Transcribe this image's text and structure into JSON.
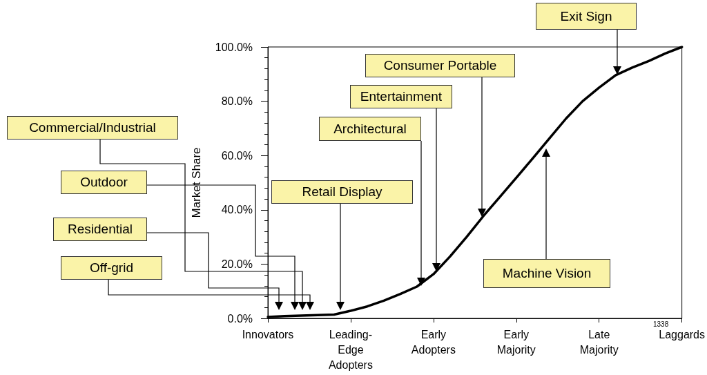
{
  "chart_data": {
    "type": "line",
    "ylabel": "Market Share",
    "categories": [
      "Innovators",
      null,
      null,
      null,
      null,
      "Leading-\nEdge\nAdopters",
      null,
      null,
      null,
      null,
      "Early\nAdopters",
      null,
      null,
      null,
      null,
      "Early\nMajority",
      null,
      null,
      null,
      null,
      "Late\nMajority",
      null,
      null,
      null,
      null,
      "Laggards"
    ],
    "series": [
      {
        "color": "#000000",
        "values": [
          0.5,
          0.8,
          1.0,
          1.2,
          1.4,
          2.8,
          4.4,
          6.5,
          9,
          11.7,
          16.3,
          22.8,
          30,
          37.6,
          44.7,
          51.8,
          59,
          66.3,
          73.6,
          80,
          85,
          89.6,
          92.4,
          94.8,
          97.6,
          100
        ]
      }
    ],
    "ylim": [
      0,
      100
    ],
    "yticks": [
      {
        "value": 0,
        "label": "0.0%"
      },
      {
        "value": 20,
        "label": "20.0%"
      },
      {
        "value": 40,
        "label": "40.0%"
      },
      {
        "value": 60,
        "label": "60.0%"
      },
      {
        "value": 80,
        "label": "80.0%"
      },
      {
        "value": 100,
        "label": "100.0%"
      }
    ],
    "annotations": [
      "Exit Sign",
      "Consumer Portable",
      "Entertainment",
      "Architectural",
      "Commercial/Industrial",
      "Outdoor",
      "Retail Display",
      "Residential",
      "Off-grid",
      "Machine Vision",
      "1338"
    ],
    "grid": false,
    "marker": "none",
    "line_style": "solid"
  }
}
